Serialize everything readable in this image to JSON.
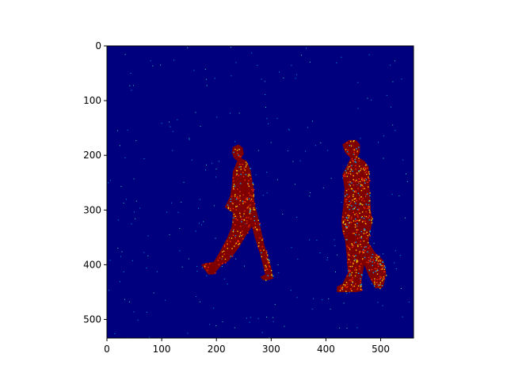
{
  "chart_data": {
    "type": "heatmap",
    "title": "",
    "xlabel": "",
    "ylabel": "",
    "colormap": "jet",
    "background_color": "#00007f",
    "foreground_colors": [
      "#7f0000",
      "#ff3000",
      "#ffd000",
      "#00b0ff"
    ],
    "image_width": 560,
    "image_height": 534,
    "xlim": [
      0,
      560
    ],
    "ylim": [
      534,
      0
    ],
    "x_ticks": [
      0,
      100,
      200,
      300,
      400,
      500
    ],
    "y_ticks": [
      0,
      100,
      200,
      300,
      400,
      500
    ],
    "x_tick_labels": [
      "0",
      "100",
      "200",
      "300",
      "400",
      "500"
    ],
    "y_tick_labels": [
      "0",
      "100",
      "200",
      "300",
      "400",
      "500"
    ],
    "regions": [
      {
        "name": "person-left",
        "polygon": [
          [
            230,
            185
          ],
          [
            240,
            180
          ],
          [
            248,
            186
          ],
          [
            250,
            198
          ],
          [
            245,
            205
          ],
          [
            255,
            210
          ],
          [
            262,
            225
          ],
          [
            268,
            260
          ],
          [
            270,
            290
          ],
          [
            273,
            300
          ],
          [
            280,
            330
          ],
          [
            288,
            365
          ],
          [
            300,
            405
          ],
          [
            304,
            425
          ],
          [
            295,
            428
          ],
          [
            285,
            428
          ],
          [
            280,
            422
          ],
          [
            289,
            418
          ],
          [
            281,
            385
          ],
          [
            270,
            350
          ],
          [
            265,
            330
          ],
          [
            255,
            345
          ],
          [
            240,
            370
          ],
          [
            222,
            393
          ],
          [
            210,
            400
          ],
          [
            195,
            418
          ],
          [
            185,
            418
          ],
          [
            172,
            400
          ],
          [
            180,
            397
          ],
          [
            195,
            395
          ],
          [
            205,
            378
          ],
          [
            220,
            350
          ],
          [
            228,
            330
          ],
          [
            230,
            305
          ],
          [
            222,
            300
          ],
          [
            215,
            295
          ],
          [
            225,
            275
          ],
          [
            228,
            255
          ],
          [
            230,
            230
          ],
          [
            238,
            210
          ],
          [
            232,
            205
          ],
          [
            228,
            195
          ]
        ]
      },
      {
        "name": "person-right",
        "polygon": [
          [
            430,
            180
          ],
          [
            442,
            172
          ],
          [
            455,
            172
          ],
          [
            462,
            180
          ],
          [
            462,
            195
          ],
          [
            458,
            203
          ],
          [
            470,
            210
          ],
          [
            478,
            220
          ],
          [
            480,
            260
          ],
          [
            482,
            300
          ],
          [
            485,
            320
          ],
          [
            480,
            345
          ],
          [
            478,
            360
          ],
          [
            490,
            378
          ],
          [
            505,
            392
          ],
          [
            510,
            415
          ],
          [
            505,
            440
          ],
          [
            500,
            443
          ],
          [
            490,
            443
          ],
          [
            478,
            420
          ],
          [
            470,
            400
          ],
          [
            465,
            430
          ],
          [
            466,
            448
          ],
          [
            455,
            450
          ],
          [
            440,
            450
          ],
          [
            420,
            450
          ],
          [
            420,
            440
          ],
          [
            430,
            435
          ],
          [
            440,
            415
          ],
          [
            438,
            385
          ],
          [
            435,
            355
          ],
          [
            430,
            340
          ],
          [
            428,
            320
          ],
          [
            432,
            290
          ],
          [
            434,
            260
          ],
          [
            430,
            235
          ],
          [
            440,
            215
          ],
          [
            445,
            205
          ],
          [
            435,
            195
          ]
        ]
      }
    ]
  }
}
